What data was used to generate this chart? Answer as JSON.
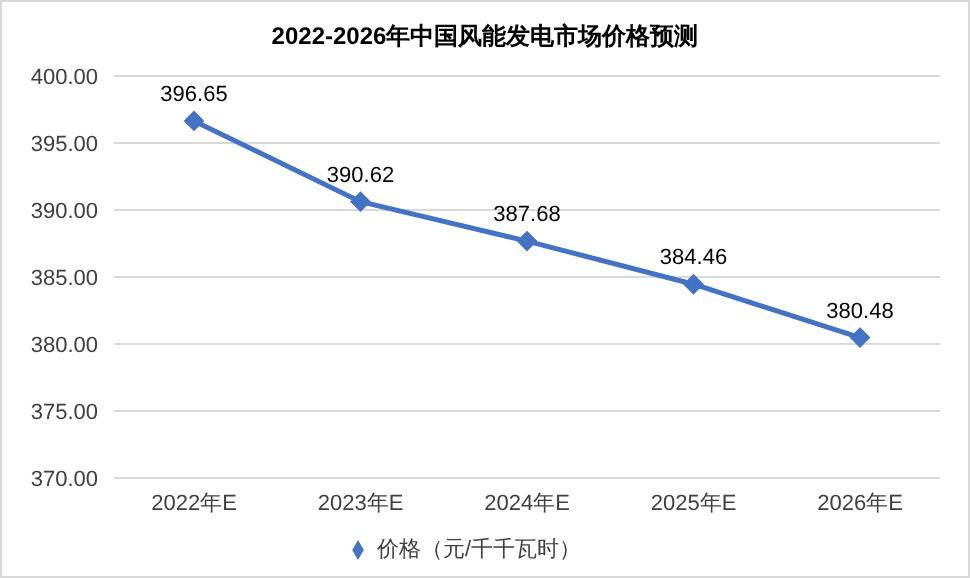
{
  "chart_data": {
    "type": "line",
    "title": "2022-2026年中国风能发电市场价格预测",
    "categories": [
      "2022年E",
      "2023年E",
      "2024年E",
      "2025年E",
      "2026年E"
    ],
    "series": [
      {
        "name": "价格（元/千千瓦时）",
        "color": "#4472c4",
        "values": [
          396.65,
          390.62,
          387.68,
          384.46,
          380.48
        ]
      }
    ],
    "ylim": [
      370,
      400
    ],
    "yticks": [
      {
        "value": 370,
        "label": "370.00"
      },
      {
        "value": 375,
        "label": "375.00"
      },
      {
        "value": 380,
        "label": "380.00"
      },
      {
        "value": 385,
        "label": "385.00"
      },
      {
        "value": 390,
        "label": "390.00"
      },
      {
        "value": 395,
        "label": "395.00"
      },
      {
        "value": 400,
        "label": "400.00"
      }
    ],
    "grid": "y",
    "legend": "bottom",
    "marker": "diamond",
    "line_style": "solid",
    "data_labels": true
  }
}
